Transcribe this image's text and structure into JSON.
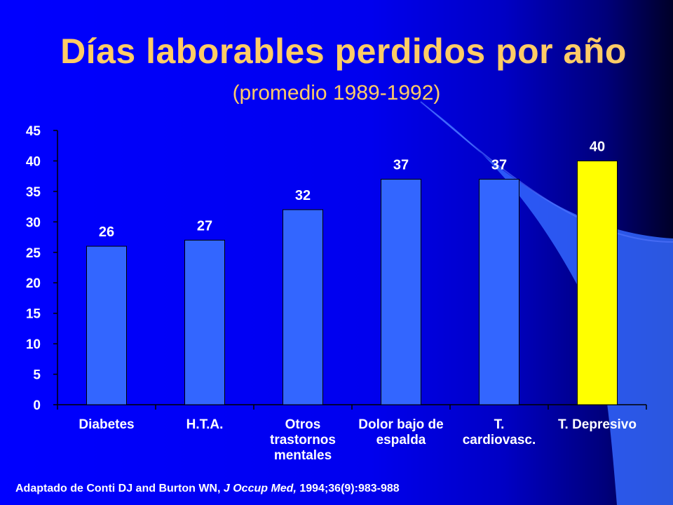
{
  "slide": {
    "title": "Días laborables perdidos por año",
    "subtitle": "(promedio 1989-1992)",
    "source": {
      "prefix": "Adaptado de Conti DJ and Burton WN, ",
      "journal": "J Occup Med,",
      "suffix": " 1994;36(9):983-988"
    }
  },
  "colors": {
    "background": "#0000ee",
    "title": "#ffcc66",
    "bar": "#3366ff",
    "highlight_bar": "#ffff00",
    "text": "#ffffff",
    "swoosh": "#3366ff"
  },
  "chart_data": {
    "type": "bar",
    "title": "",
    "xlabel": "",
    "ylabel": "",
    "categories": [
      [
        "Diabetes"
      ],
      [
        "H.T.A."
      ],
      [
        "Otros",
        "trastornos",
        "mentales"
      ],
      [
        "Dolor bajo de",
        "espalda"
      ],
      [
        "T.",
        "cardiovasc."
      ],
      [
        "T. Depresivo"
      ]
    ],
    "values": [
      26,
      27,
      32,
      37,
      37,
      40
    ],
    "highlight_index": 5,
    "ylim": [
      0,
      45
    ],
    "yticks": [
      0,
      5,
      10,
      15,
      20,
      25,
      30,
      35,
      40,
      45
    ],
    "grid": false,
    "legend": "none",
    "data_labels": true
  }
}
